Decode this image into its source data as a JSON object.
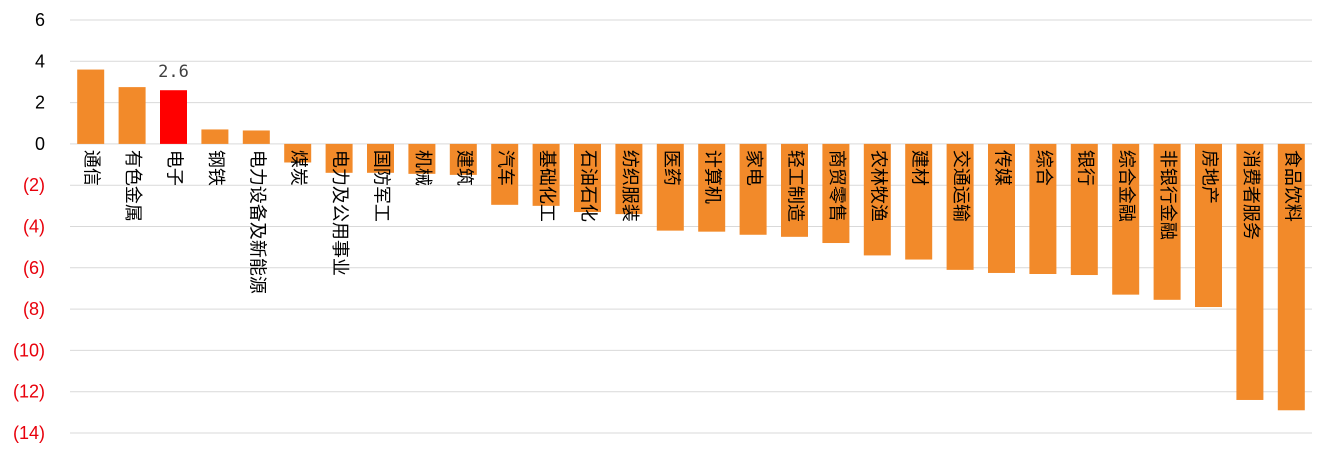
{
  "chart_data": {
    "type": "bar",
    "categories": [
      "通信",
      "有色金属",
      "电子",
      "钢铁",
      "电力设备及新能源",
      "煤炭",
      "电力及公用事业",
      "国防军工",
      "机械",
      "建筑",
      "汽车",
      "基础化工",
      "石油石化",
      "纺织服装",
      "医药",
      "计算机",
      "家电",
      "轻工制造",
      "商贸零售",
      "农林牧渔",
      "建材",
      "交通运输",
      "传媒",
      "综合",
      "银行",
      "综合金融",
      "非银行金融",
      "房地产",
      "消费者服务",
      "食品饮料"
    ],
    "values": [
      3.6,
      2.75,
      2.6,
      0.7,
      0.65,
      -0.9,
      -1.4,
      -1.4,
      -1.45,
      -1.5,
      -2.95,
      -3.0,
      -3.3,
      -3.4,
      -4.2,
      -4.25,
      -4.4,
      -4.5,
      -4.8,
      -5.4,
      -5.6,
      -6.1,
      -6.25,
      -6.3,
      -6.35,
      -7.3,
      -7.55,
      -7.9,
      -12.4,
      -12.9
    ],
    "highlight_index": 2,
    "data_labels": [
      {
        "category": "电子",
        "text": "2.6"
      }
    ],
    "ylim": [
      -14,
      6
    ],
    "yticks": [
      6,
      4,
      2,
      0,
      -2,
      -4,
      -6,
      -8,
      -10,
      -12,
      -14
    ],
    "ytick_labels": [
      "6",
      "4",
      "2",
      "0",
      "(2)",
      "(4)",
      "(6)",
      "(8)",
      "(10)",
      "(12)",
      "(14)"
    ],
    "grid": true,
    "title": "",
    "xlabel": "",
    "ylabel": "",
    "colors": {
      "bar": "#F28A2A",
      "highlight": "#FF0000",
      "negative_tick": "#E8000B",
      "positive_tick": "#000000",
      "grid": "#D9D9D9"
    }
  }
}
